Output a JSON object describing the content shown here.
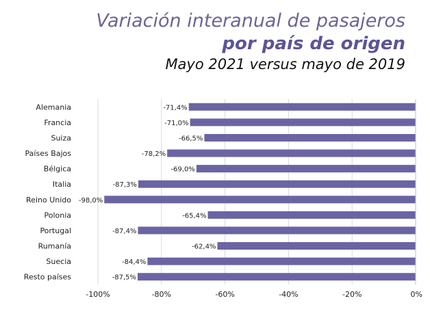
{
  "chart_data": {
    "type": "bar",
    "orientation": "horizontal",
    "title": "Variación interanual de pasajeros",
    "subtitle": "por país de origen",
    "subtitle2": "Mayo 2021 versus mayo de 2019",
    "categories": [
      "Alemania",
      "Francia",
      "Suiza",
      "Países Bajos",
      "Bélgica",
      "Italia",
      "Reino Unido",
      "Polonia",
      "Portugal",
      "Rumanía",
      "Suecia",
      "Resto países"
    ],
    "values": [
      -71.4,
      -71.0,
      -66.5,
      -78.2,
      -69.0,
      -87.3,
      -98.0,
      -65.4,
      -87.4,
      -62.4,
      -84.4,
      -87.5
    ],
    "data_labels": [
      "-71,4%",
      "-71,0%",
      "-66,5%",
      "-78,2%",
      "-69,0%",
      "-87,3%",
      "-98,0%",
      "-65,4%",
      "-87,4%",
      "-62,4%",
      "-84,4%",
      "-87,5%"
    ],
    "xlim": [
      -100,
      0
    ],
    "x_ticks": [
      -100,
      -80,
      -60,
      -40,
      -20,
      0
    ],
    "x_tick_labels": [
      "-100%",
      "-80%",
      "-60%",
      "-40%",
      "-20%",
      "0%"
    ],
    "grid": "vertical",
    "bar_color": "#6b64a4",
    "grid_color": "#d9d9d9"
  }
}
